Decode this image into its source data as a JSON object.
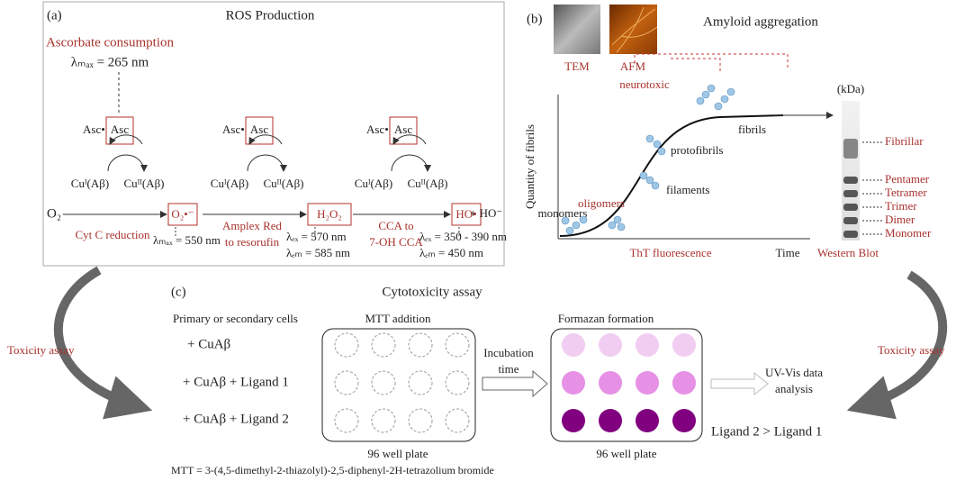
{
  "panel_a": {
    "label": "(a)",
    "title": "ROS Production",
    "ascorbate": "Ascorbate consumption",
    "ascorbate_lambda": "λₘₐₓ = 265 nm",
    "o2": "O₂",
    "asc_radical": "Asc•",
    "asc": "Asc",
    "cu1": "Cuᴵ(Aβ)",
    "cu2": "Cuᴵᴵ(Aβ)",
    "species": [
      "O₂•⁻",
      "H₂O₂",
      "HO•"
    ],
    "hydroxide": "+ HO⁻",
    "assays": [
      [
        "Cyt C reduction"
      ],
      [
        "Amplex Red",
        "to resorufin"
      ],
      [
        "CCA to",
        "7-OH CCA"
      ]
    ],
    "readouts": [
      [
        "λₘₐₓ = 550 nm"
      ],
      [
        "λₑₓ = 570 nm",
        "λₑₘ = 585 nm"
      ],
      [
        "λₑₓ = 350 - 390 nm",
        "λₑₘ = 450 nm"
      ]
    ]
  },
  "panel_b": {
    "label": "(b)",
    "title": "Amyloid aggregation",
    "tem": "TEM",
    "afm": "AFM",
    "neurotoxic": "neurotoxic",
    "y_label": "Quantity of fibrils",
    "x_label": "Time",
    "tht": "ThT fluorescence",
    "stages": [
      "monomers",
      "oligomers",
      "filaments",
      "protofibrils",
      "fibrils"
    ],
    "blot_unit": "(kDa)",
    "blot_title": "Western Blot",
    "bands": [
      "Fibrillar",
      "Pentamer",
      "Tetramer",
      "Trimer",
      "Dimer",
      "Monomer"
    ]
  },
  "panel_c": {
    "label": "(c)",
    "title": "Cytotoxicity assay",
    "cells": "Primary or secondary cells",
    "conditions": [
      "+ CuAβ",
      "+ CuAβ + Ligand 1",
      "+ CuAβ + Ligand 2"
    ],
    "mtt_addition": "MTT addition",
    "plate": "96 well plate",
    "incubation": [
      "Incubation",
      "time"
    ],
    "formazan": "Formazan formation",
    "uvvis": [
      "UV-Vis data",
      "analysis"
    ],
    "result": "Ligand 2 > Ligand 1",
    "footnote": "MTT = 3-(4,5-dimethyl-2-thiazolyl)-2,5-diphenyl-2H-tetrazolium bromide"
  },
  "side_label": "Toxicity assay"
}
